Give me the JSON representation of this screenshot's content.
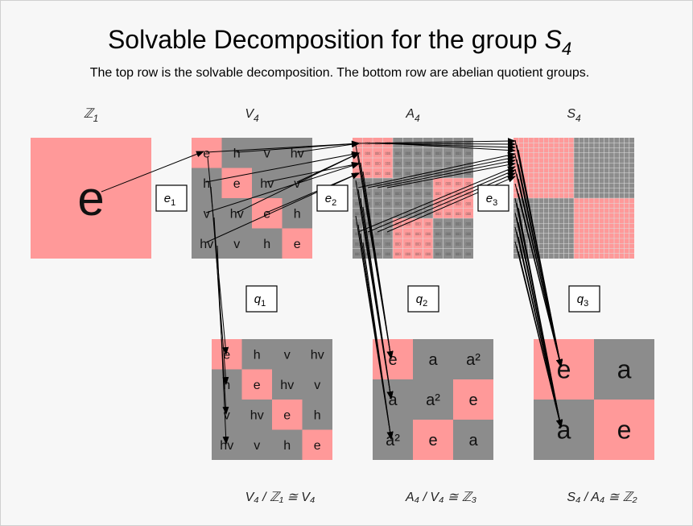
{
  "title": {
    "prefix": "Solvable Decomposition for the group ",
    "group": "S",
    "sub": "4"
  },
  "subtitle": "The top row is the solvable decomposition. The bottom row are abelian quotient groups.",
  "colors": {
    "identity_cell": "#ff9999",
    "other_cell": "#8c8c8c",
    "grid_line": "#dddddd",
    "arrow": "#000000"
  },
  "top_groups": [
    {
      "id": "Z1",
      "name": "ℤ",
      "sub": "1",
      "order": 1,
      "table": [
        [
          "e"
        ]
      ]
    },
    {
      "id": "V4",
      "name": "V",
      "sub": "4",
      "order": 4,
      "table": [
        [
          "e",
          "h",
          "v",
          "hv"
        ],
        [
          "h",
          "e",
          "hv",
          "v"
        ],
        [
          "v",
          "hv",
          "e",
          "h"
        ],
        [
          "hv",
          "v",
          "h",
          "e"
        ]
      ]
    },
    {
      "id": "A4",
      "name": "A",
      "sub": "4",
      "order": 12,
      "table": null
    },
    {
      "id": "S4",
      "name": "S",
      "sub": "4",
      "order": 24,
      "table": null
    }
  ],
  "maps": [
    {
      "id": "e1",
      "base": "e",
      "sub": "1",
      "kind": "embedding"
    },
    {
      "id": "e2",
      "base": "e",
      "sub": "2",
      "kind": "embedding"
    },
    {
      "id": "e3",
      "base": "e",
      "sub": "3",
      "kind": "embedding"
    },
    {
      "id": "q1",
      "base": "q",
      "sub": "1",
      "kind": "quotient"
    },
    {
      "id": "q2",
      "base": "q",
      "sub": "2",
      "kind": "quotient"
    },
    {
      "id": "q3",
      "base": "q",
      "sub": "3",
      "kind": "quotient"
    }
  ],
  "quotients": [
    {
      "label": "V₄ / ℤ₁ ≅ V₄",
      "table": [
        [
          "e",
          "h",
          "v",
          "hv"
        ],
        [
          "h",
          "e",
          "hv",
          "v"
        ],
        [
          "v",
          "hv",
          "e",
          "h"
        ],
        [
          "hv",
          "v",
          "h",
          "e"
        ]
      ]
    },
    {
      "label": "A₄ / V₄ ≅ ℤ₃",
      "table": [
        [
          "e",
          "a",
          "a²"
        ],
        [
          "a",
          "a²",
          "e"
        ],
        [
          "a²",
          "e",
          "a"
        ]
      ]
    },
    {
      "label": "S₄ / A₄ ≅ ℤ₂",
      "table": [
        [
          "e",
          "a"
        ],
        [
          "a",
          "e"
        ]
      ]
    }
  ]
}
